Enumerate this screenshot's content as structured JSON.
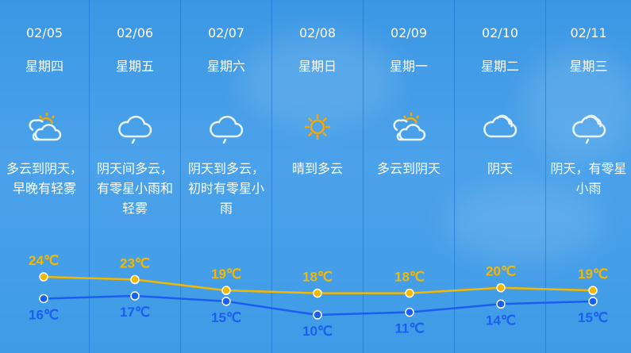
{
  "days": [
    {
      "date": "02/05",
      "weekday": "星期四",
      "icon": "partly-cloudy-icon",
      "desc": "多云到阴天，\n早晚有轻雾",
      "high": "24℃",
      "low": "16℃"
    },
    {
      "date": "02/06",
      "weekday": "星期五",
      "icon": "light-rain-icon",
      "desc": "阴天间多云，\n有零星小雨和\n轻雾",
      "high": "23℃",
      "low": "17℃"
    },
    {
      "date": "02/07",
      "weekday": "星期六",
      "icon": "light-rain-icon",
      "desc": "阴天到多云，\n初时有零星小\n雨",
      "high": "19℃",
      "low": "15℃"
    },
    {
      "date": "02/08",
      "weekday": "星期日",
      "icon": "sunny-icon",
      "desc": "晴到多云",
      "high": "18℃",
      "low": "10℃"
    },
    {
      "date": "02/09",
      "weekday": "星期一",
      "icon": "partly-cloudy-icon",
      "desc": "多云到阴天",
      "high": "18℃",
      "low": "11℃"
    },
    {
      "date": "02/10",
      "weekday": "星期二",
      "icon": "cloudy-icon",
      "desc": "阴天",
      "high": "20℃",
      "low": "14℃"
    },
    {
      "date": "02/11",
      "weekday": "星期三",
      "icon": "cloudy-rain-icon",
      "desc": "阴天，有零星\n小雨",
      "high": "19℃",
      "low": "15℃"
    }
  ],
  "chart_data": {
    "type": "line",
    "categories": [
      "02/05",
      "02/06",
      "02/07",
      "02/08",
      "02/09",
      "02/10",
      "02/11"
    ],
    "series": [
      {
        "values": [
          24,
          23,
          19,
          18,
          18,
          20,
          19
        ],
        "color": "#f5b800"
      },
      {
        "values": [
          16,
          17,
          15,
          10,
          11,
          14,
          15
        ],
        "color": "#1a5ef0"
      }
    ],
    "unit": "℃"
  },
  "colors": {
    "high": "#f5b800",
    "low": "#1a5ef0",
    "sun": "#f5a800"
  }
}
